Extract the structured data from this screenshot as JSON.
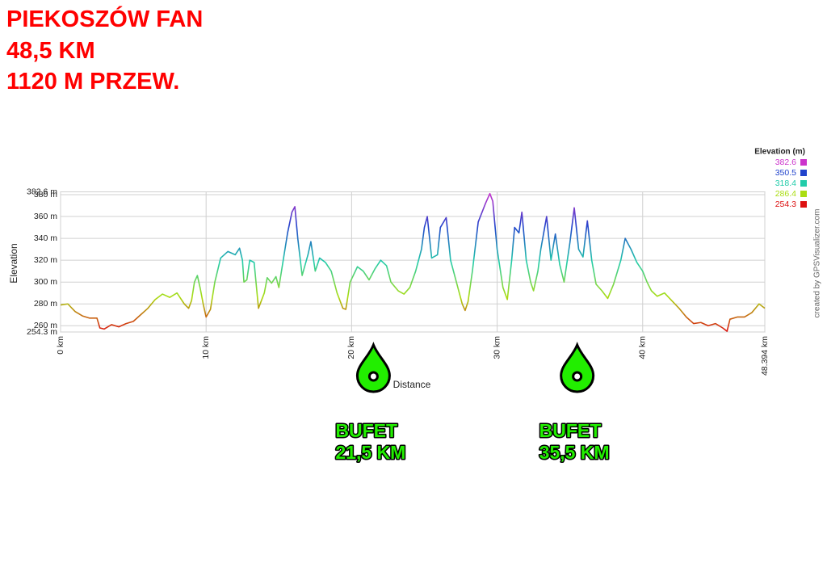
{
  "chart_data": {
    "type": "line",
    "headline": [
      "PIEKOSZÓW FAN",
      "48,5 KM",
      "1120 M PRZEW."
    ],
    "y_label": "Elevation",
    "x_label": "Distance",
    "credit": "created by GPSVisualizer.com",
    "xlim": [
      0,
      48.394
    ],
    "ylim": [
      254.3,
      382.6
    ],
    "xticks": [
      {
        "value": 0,
        "label": "0 km"
      },
      {
        "value": 10,
        "label": "10 km"
      },
      {
        "value": 20,
        "label": "20 km"
      },
      {
        "value": 30,
        "label": "30 km"
      },
      {
        "value": 40,
        "label": "40 km"
      },
      {
        "value": 48.394,
        "label": "48.394 km"
      }
    ],
    "yticks": [
      {
        "value": 254.3,
        "label": "254.3 m"
      },
      {
        "value": 260,
        "label": "260 m"
      },
      {
        "value": 280,
        "label": "280 m"
      },
      {
        "value": 300,
        "label": "300 m"
      },
      {
        "value": 320,
        "label": "320 m"
      },
      {
        "value": 340,
        "label": "340 m"
      },
      {
        "value": 360,
        "label": "360 m"
      },
      {
        "value": 380,
        "label": "380 m"
      },
      {
        "value": 382.6,
        "label": "382.6 m"
      }
    ],
    "grid": true,
    "legend": {
      "title": "Elevation (m)",
      "items": [
        {
          "value": 382.6,
          "color": "#cc33cc"
        },
        {
          "value": 350.5,
          "color": "#2244cc"
        },
        {
          "value": 318.4,
          "color": "#22ccaa"
        },
        {
          "value": 286.4,
          "color": "#aadd11"
        },
        {
          "value": 254.3,
          "color": "#dd1111"
        }
      ]
    },
    "annotations": [
      {
        "x": 21.5,
        "lines": [
          "BUFET",
          "21,5 KM"
        ]
      },
      {
        "x": 35.5,
        "lines": [
          "BUFET",
          "35,5 KM"
        ]
      }
    ],
    "x": [
      0,
      0.5,
      1,
      1.5,
      2,
      2.5,
      2.7,
      3,
      3.5,
      4,
      4.5,
      5,
      5.5,
      6,
      6.5,
      7,
      7.5,
      8,
      8.5,
      8.8,
      9,
      9.2,
      9.4,
      9.6,
      9.8,
      10,
      10.3,
      10.6,
      11,
      11.5,
      12,
      12.3,
      12.5,
      12.6,
      12.8,
      13,
      13.3,
      13.6,
      14,
      14.2,
      14.5,
      14.8,
      15,
      15.3,
      15.6,
      15.9,
      16.1,
      16.3,
      16.6,
      17,
      17.2,
      17.5,
      17.8,
      18.2,
      18.6,
      19,
      19.4,
      19.6,
      19.9,
      20.4,
      20.8,
      21.2,
      21.6,
      22,
      22.4,
      22.7,
      23.2,
      23.6,
      24,
      24.4,
      24.8,
      25,
      25.2,
      25.5,
      25.9,
      26.1,
      26.5,
      26.8,
      27.2,
      27.6,
      27.8,
      28,
      28.3,
      28.7,
      29.2,
      29.5,
      29.7,
      30,
      30.4,
      30.7,
      31,
      31.2,
      31.5,
      31.7,
      32,
      32.3,
      32.5,
      32.8,
      33,
      33.4,
      33.7,
      34,
      34.3,
      34.6,
      35,
      35.3,
      35.6,
      35.9,
      36.2,
      36.5,
      36.8,
      37.2,
      37.6,
      38,
      38.5,
      38.8,
      39.2,
      39.6,
      40,
      40.3,
      40.6,
      41,
      41.5,
      42,
      42.5,
      43,
      43.5,
      44,
      44.5,
      45,
      45.5,
      45.8,
      46,
      46.5,
      47,
      47.5,
      48,
      48.394
    ],
    "values": [
      279,
      280,
      273,
      269,
      267,
      267,
      258,
      257,
      261,
      259,
      262,
      264,
      270,
      276,
      284,
      289,
      286,
      290,
      280,
      276,
      283,
      300,
      306,
      294,
      280,
      268,
      275,
      300,
      322,
      328,
      325,
      331,
      320,
      300,
      302,
      320,
      318,
      276,
      290,
      304,
      299,
      305,
      295,
      320,
      345,
      364,
      369,
      340,
      306,
      325,
      337,
      310,
      322,
      318,
      310,
      290,
      276,
      275,
      300,
      314,
      310,
      302,
      312,
      320,
      315,
      300,
      292,
      289,
      295,
      310,
      330,
      350,
      360,
      322,
      325,
      350,
      359,
      320,
      300,
      280,
      274,
      282,
      310,
      355,
      372,
      381,
      374,
      330,
      295,
      284,
      320,
      350,
      345,
      364,
      320,
      300,
      292,
      310,
      330,
      360,
      320,
      344,
      316,
      300,
      336,
      368,
      330,
      323,
      356,
      320,
      298,
      292,
      285,
      298,
      320,
      340,
      330,
      318,
      310,
      300,
      292,
      287,
      290,
      283,
      276,
      268,
      262,
      263,
      260,
      262,
      258,
      255,
      266,
      268,
      268,
      272,
      280,
      276
    ]
  }
}
